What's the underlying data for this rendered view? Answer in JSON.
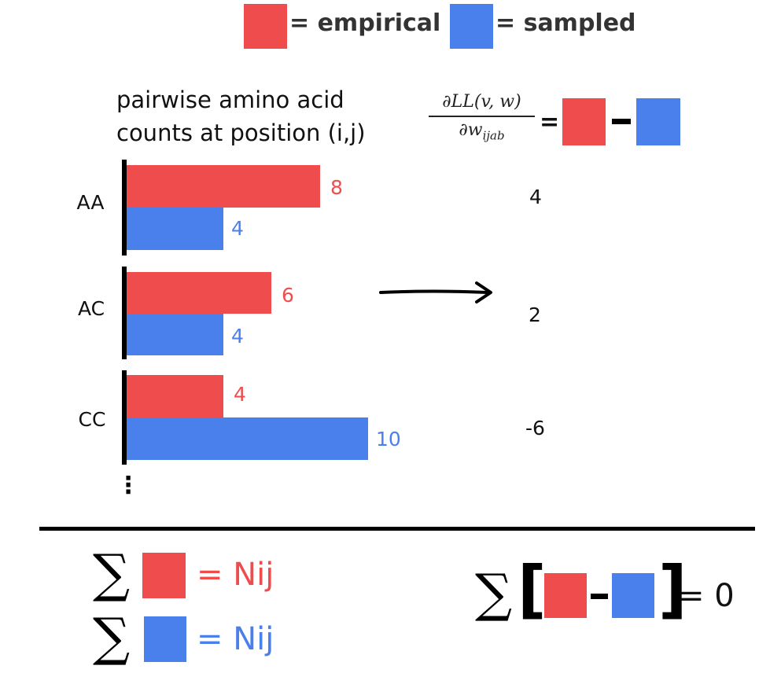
{
  "legend": {
    "empirical_label": "= empirical",
    "sampled_label": "= sampled"
  },
  "colors": {
    "empirical": "#ef4c4e",
    "sampled": "#4a80ec"
  },
  "heading": {
    "line1": "pairwise amino acid",
    "line2": "counts at position (i,j)"
  },
  "gradient": {
    "numerator": "∂LL(v, w)",
    "denominator": "∂w",
    "subscript": "ijab",
    "equals": "=",
    "minus": "–"
  },
  "bars": [
    {
      "category": "AA",
      "empirical": 8,
      "sampled": 4,
      "difference": "4"
    },
    {
      "category": "AC",
      "empirical": 6,
      "sampled": 4,
      "difference": "2"
    },
    {
      "category": "CC",
      "empirical": 4,
      "sampled": 10,
      "difference": "-6"
    }
  ],
  "ellipsis": "⋮",
  "sums": {
    "sigma": "∑",
    "empirical_total": "= Nij",
    "sampled_total": "= Nij",
    "difference_left_bracket": "[",
    "difference_right_bracket": "]",
    "difference_minus": "–",
    "difference_total": "= 0"
  }
}
